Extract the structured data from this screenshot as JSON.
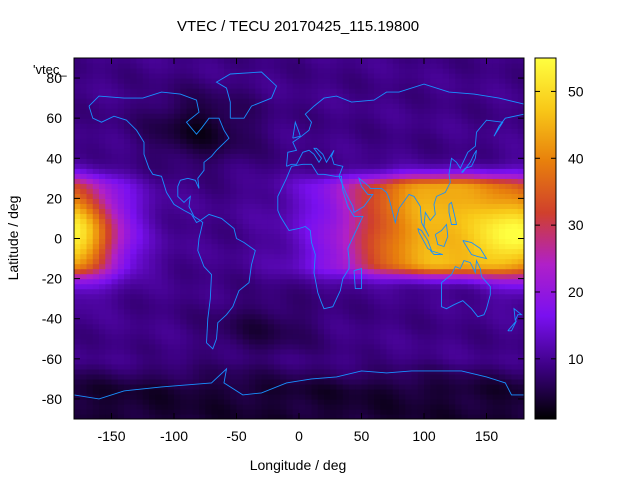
{
  "chart_data": {
    "type": "heatmap",
    "title": "VTEC / TECU 20170425_115.19800",
    "xlabel": "Longitude / deg",
    "ylabel": "Latitude / deg",
    "xlim": [
      -180,
      180
    ],
    "ylim": [
      -90,
      90
    ],
    "x_ticks": [
      -150,
      -100,
      -50,
      0,
      50,
      100,
      150
    ],
    "y_ticks": [
      -80,
      -60,
      -40,
      -20,
      0,
      20,
      40,
      60,
      80
    ],
    "colorbar": {
      "min": 1,
      "max": 55,
      "ticks": [
        10,
        20,
        30,
        40,
        50
      ]
    },
    "overlay_label": "'vtec_",
    "colormap": [
      "#000000",
      "#3c0082",
      "#7a10f0",
      "#b020c8",
      "#d0402c",
      "#e8800c",
      "#f8c818",
      "#ffff40"
    ],
    "coastline_color": "#1890ff",
    "grid_resolution_deg": {
      "lon": 5,
      "lat": 2.5
    },
    "features": {
      "background_tecu": 9,
      "asia_pacific_peak": {
        "center_lon": 110,
        "center_lat": 5,
        "peak_tecu": 45,
        "lon_spread": 55,
        "lat_spread": 18,
        "lat_extent": [
          -12,
          25
        ]
      },
      "dateline_band": {
        "center_lon": -180,
        "center_lat": 2,
        "peak_tecu": 38,
        "lon_spread": 25,
        "lat_spread": 15
      },
      "north_america_low": {
        "center_lon": -80,
        "center_lat": 55,
        "min_tecu": 3
      },
      "south_atlantic_low": {
        "center_lon": -30,
        "center_lat": -45,
        "min_tecu": 5
      },
      "antarctic_low": {
        "lat_max": -60,
        "min_tecu": 4
      }
    }
  }
}
